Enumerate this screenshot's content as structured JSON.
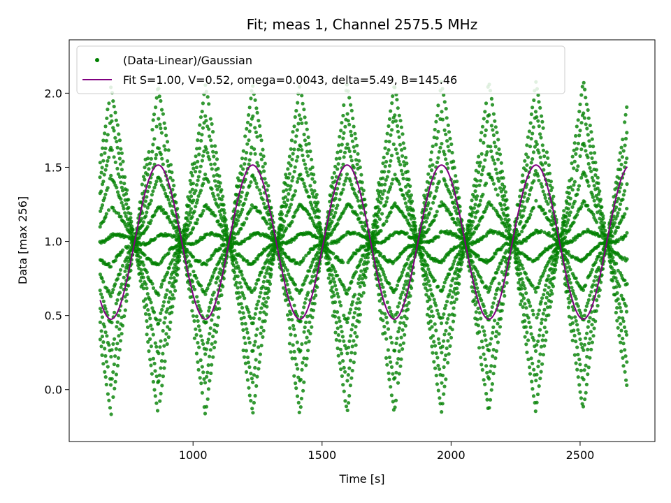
{
  "chart_data": {
    "type": "scatter",
    "title": "Fit; meas 1, Channel 2575.5 MHz",
    "xlabel": "Time [s]",
    "ylabel": "Data [max 256]",
    "xlim": [
      520,
      2790
    ],
    "ylim": [
      -0.35,
      2.36
    ],
    "xticks": [
      1000,
      1500,
      2000,
      2500
    ],
    "yticks": [
      0.0,
      0.5,
      1.0,
      1.5,
      2.0
    ],
    "xtick_labels": [
      "1000",
      "1500",
      "2000",
      "2500"
    ],
    "ytick_labels": [
      "0.0",
      "0.5",
      "1.0",
      "1.5",
      "2.0"
    ],
    "grid": false,
    "legend_position": "top-left",
    "series": [
      {
        "name": "(Data-Linear)/Gaussian",
        "kind": "scatter",
        "color": "#008000",
        "x_range": [
          640,
          2685
        ],
        "envelope_period": 366,
        "envelope_min": -0.22,
        "envelope_max": 2.2,
        "band_count": 12
      },
      {
        "name": "Fit S=1.00, V=0.52, omega=0.0043, delta=5.49, B=145.46",
        "kind": "line",
        "color": "#800080",
        "x_range": [
          640,
          2685
        ],
        "S": 1.0,
        "V": 0.52,
        "omega": 0.0043,
        "delta": 5.49,
        "B": 145.46
      }
    ]
  }
}
